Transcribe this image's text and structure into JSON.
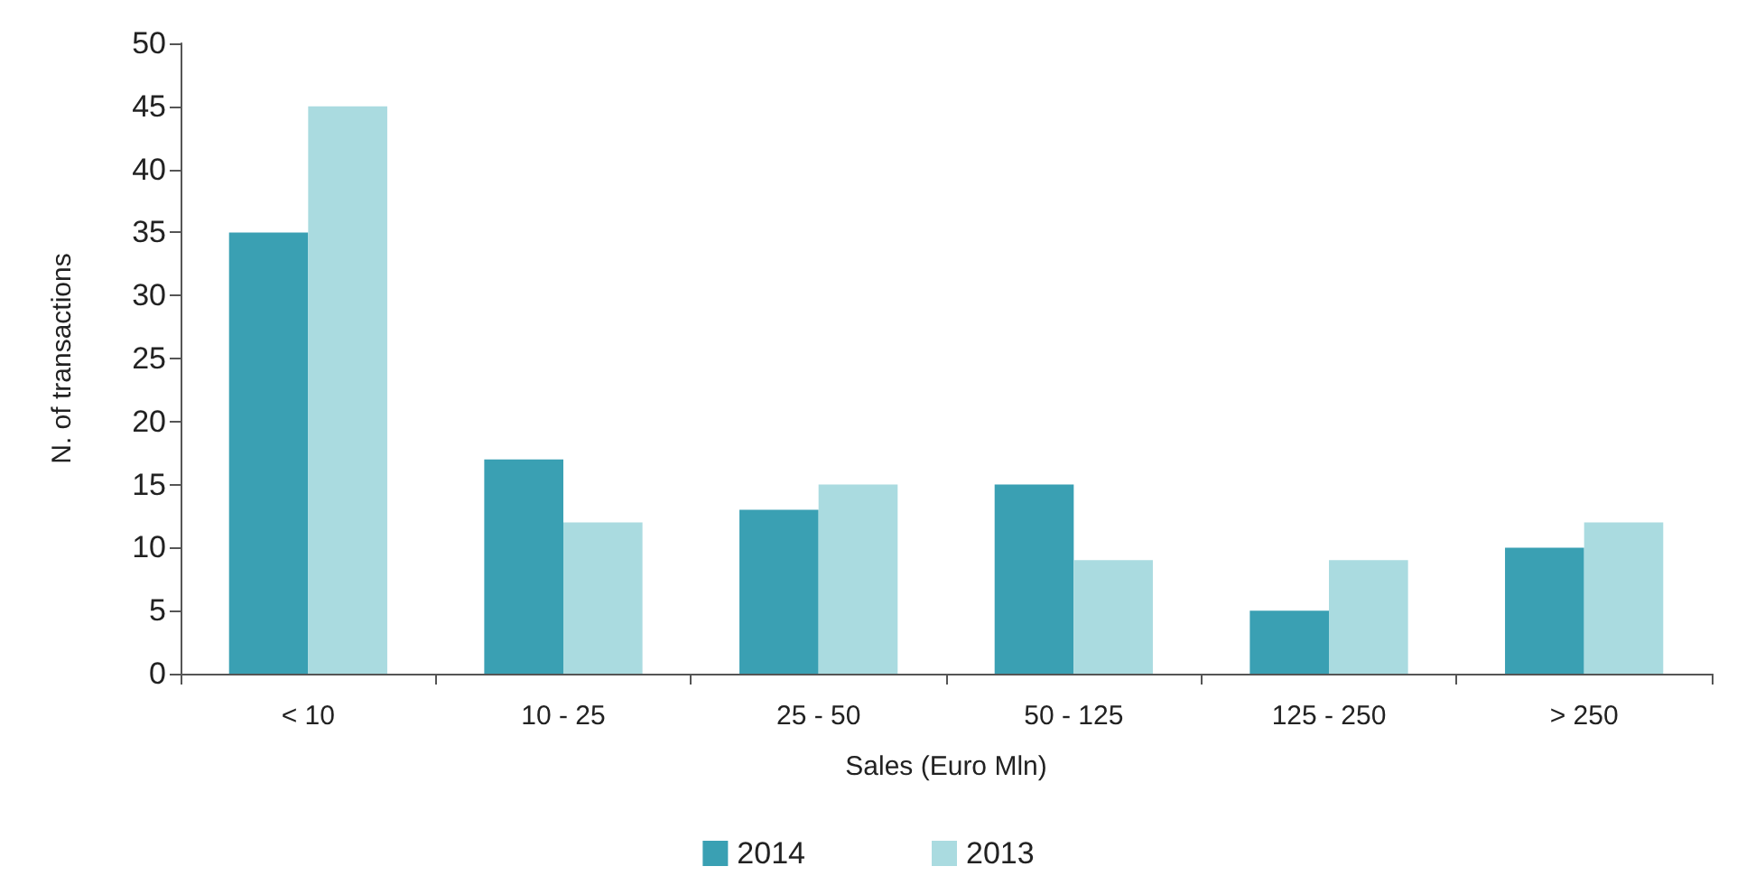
{
  "chart_data": {
    "type": "bar",
    "xlabel": "Sales (Euro Mln)",
    "ylabel": "N. of transactions",
    "categories": [
      "< 10",
      "10 - 25",
      "25 - 50",
      "50 - 125",
      "125 - 250",
      "> 250"
    ],
    "series": [
      {
        "name": "2014",
        "color": "#3aa0b3",
        "values": [
          35,
          17,
          13,
          15,
          5,
          10
        ]
      },
      {
        "name": "2013",
        "color": "#aadbe0",
        "values": [
          45,
          12,
          15,
          9,
          9,
          12
        ]
      }
    ],
    "ylim": [
      0,
      50
    ],
    "yticks": [
      0,
      5,
      10,
      15,
      20,
      25,
      30,
      35,
      40,
      45,
      50
    ],
    "grid": false,
    "legend": "bottom"
  }
}
